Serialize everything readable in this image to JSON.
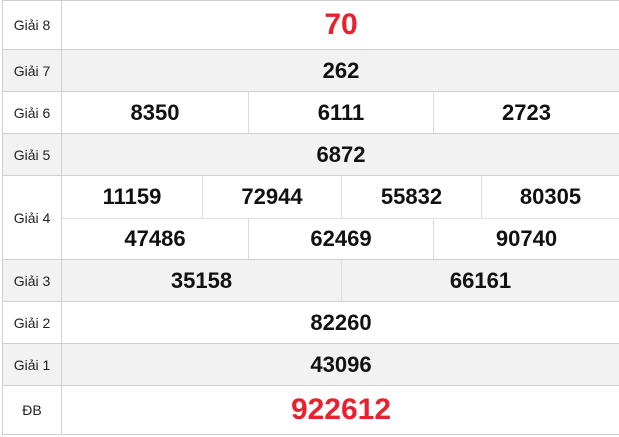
{
  "colors": {
    "special_prize": "#e8212e",
    "alt_row_bg": "#f2f2f2"
  },
  "prizes": {
    "g8": {
      "label": "Giải 8",
      "numbers": [
        "70"
      ]
    },
    "g7": {
      "label": "Giải 7",
      "numbers": [
        "262"
      ]
    },
    "g6": {
      "label": "Giải 6",
      "numbers": [
        "8350",
        "6111",
        "2723"
      ]
    },
    "g5": {
      "label": "Giải 5",
      "numbers": [
        "6872"
      ]
    },
    "g4": {
      "label": "Giải 4",
      "numbers": [
        "11159",
        "72944",
        "55832",
        "80305",
        "47486",
        "62469",
        "90740"
      ]
    },
    "g3": {
      "label": "Giải 3",
      "numbers": [
        "35158",
        "66161"
      ]
    },
    "g2": {
      "label": "Giải 2",
      "numbers": [
        "82260"
      ]
    },
    "g1": {
      "label": "Giải 1",
      "numbers": [
        "43096"
      ]
    },
    "db": {
      "label": "ĐB",
      "numbers": [
        "922612"
      ]
    }
  }
}
